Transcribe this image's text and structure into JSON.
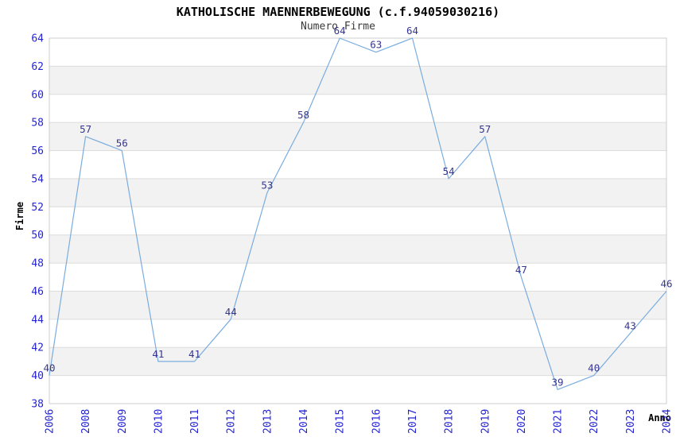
{
  "chart": {
    "title": "KATHOLISCHE MAENNERBEWEGUNG (c.f.94059030216)",
    "subtitle": "Numero Firme",
    "ylabel": "Firme",
    "xlabel": "Anno"
  },
  "chart_data": {
    "type": "line",
    "title": "KATHOLISCHE MAENNERBEWEGUNG (c.f.94059030216)",
    "subtitle": "Numero Firme",
    "xlabel": "Anno",
    "ylabel": "Firme",
    "categories": [
      "2006",
      "2008",
      "2009",
      "2010",
      "2011",
      "2012",
      "2013",
      "2014",
      "2015",
      "2016",
      "2017",
      "2018",
      "2019",
      "2020",
      "2021",
      "2022",
      "2023",
      "2024"
    ],
    "values": [
      40,
      57,
      56,
      41,
      41,
      44,
      53,
      58,
      64,
      63,
      64,
      54,
      57,
      47,
      39,
      40,
      43,
      46
    ],
    "point_labels": [
      "40",
      "57",
      "56",
      "41",
      "41",
      "44",
      "53",
      "58",
      "64",
      "63",
      "64",
      "54",
      "57",
      "47",
      "39",
      "40",
      "43",
      "46"
    ],
    "ylim": [
      38,
      64
    ],
    "ytick_step": 2,
    "yticks": [
      38,
      40,
      42,
      44,
      46,
      48,
      50,
      52,
      54,
      56,
      58,
      60,
      62,
      64
    ],
    "grid": "horizontal-only",
    "legend": "none",
    "band_fill": "alternating gray bands every 2 units, gray from 62-60 downward alternating",
    "colors": {
      "line": "#7aacdf",
      "tick_label": "#2424d2",
      "point_label": "#363690",
      "band": "#f2f2f2",
      "gridline": "#dcdcdc",
      "plot_border": "#cccccc",
      "plot_background": "#ffffff"
    }
  }
}
